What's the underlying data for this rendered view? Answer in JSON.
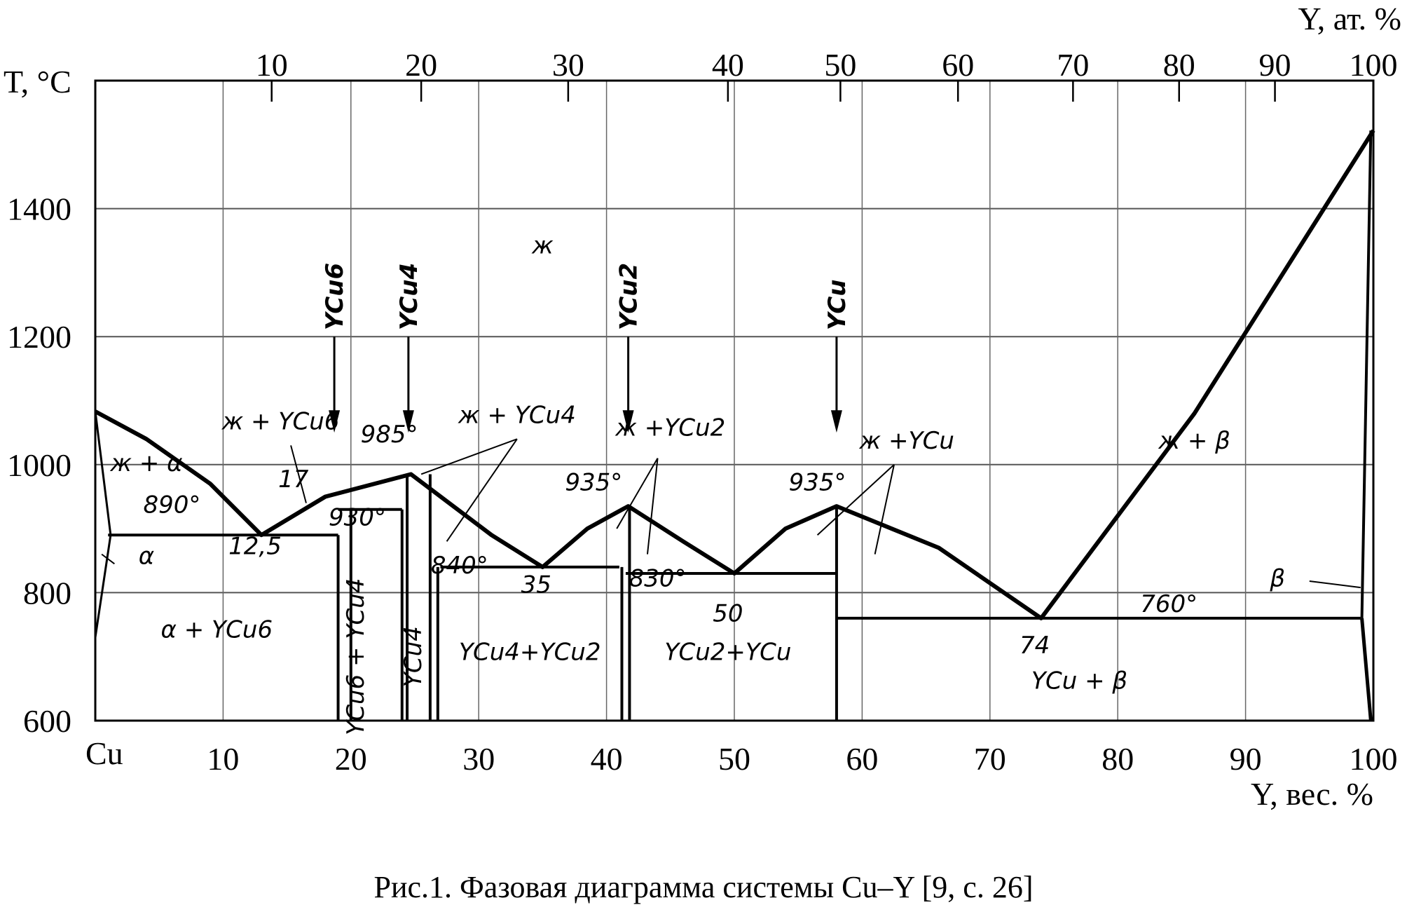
{
  "caption": "Рис.1. Фазовая диаграмма системы Cu–Y [9, с. 26]",
  "chart_data": {
    "type": "line",
    "ylabel": "T, °C",
    "xlabel_bottom": "Y, вес. %",
    "xlabel_top": "Y, ат. %",
    "ylim": [
      600,
      1600
    ],
    "xlim": [
      0,
      100
    ],
    "grid": true,
    "y_ticks": [
      "600",
      "800",
      "1000",
      "1200",
      "1400"
    ],
    "y_tick_values": [
      600,
      800,
      1000,
      1200,
      1400
    ],
    "bottom_origin_label": "Cu",
    "bottom_ticks": [
      "10",
      "20",
      "30",
      "40",
      "50",
      "60",
      "70",
      "80",
      "90",
      "100"
    ],
    "bottom_tick_values": [
      10,
      20,
      30,
      40,
      50,
      60,
      70,
      80,
      90,
      100
    ],
    "top_ticks": [
      "10",
      "20",
      "30",
      "40",
      "50",
      "60",
      "70",
      "80",
      "90",
      "100"
    ],
    "top_tick_values_wt": [
      13.8,
      25.5,
      37.0,
      49.5,
      58.3,
      67.5,
      76.5,
      84.8,
      92.3,
      100
    ],
    "liquidus": [
      [
        0,
        1083
      ],
      [
        4,
        1040
      ],
      [
        9,
        970
      ],
      [
        13,
        890
      ],
      [
        18,
        950
      ],
      [
        24.7,
        985
      ],
      [
        31,
        890
      ],
      [
        35,
        840
      ],
      [
        38.5,
        900
      ],
      [
        41.7,
        935
      ],
      [
        46,
        880
      ],
      [
        50,
        830
      ],
      [
        54,
        900
      ],
      [
        58,
        935
      ],
      [
        66,
        870
      ],
      [
        74,
        760
      ],
      [
        86,
        1080
      ],
      [
        100,
        1522
      ]
    ],
    "solidus_lines": [
      {
        "from": [
          1,
          890
        ],
        "to": [
          19,
          890
        ]
      },
      {
        "from": [
          19,
          930
        ],
        "to": [
          24,
          930
        ]
      },
      {
        "from": [
          27,
          840
        ],
        "to": [
          41,
          840
        ]
      },
      {
        "from": [
          41.5,
          830
        ],
        "to": [
          58,
          830
        ]
      },
      {
        "from": [
          58,
          760
        ],
        "to": [
          99,
          760
        ]
      }
    ],
    "compounds": [
      {
        "name": "YCu6",
        "x": 19.5,
        "t_top": 930
      },
      {
        "name": "YCu4",
        "x": 24.5,
        "t_top": 985
      },
      {
        "name": "YCu2",
        "x": 41.7,
        "t_top": 935
      },
      {
        "name": "YCu",
        "x": 58,
        "t_top": 935
      }
    ],
    "annotations": [
      {
        "text": "ж",
        "x": 35,
        "t": 1330
      },
      {
        "text": "ж + α",
        "x": 4,
        "t": 990
      },
      {
        "text": "890°",
        "x": 6,
        "t": 925
      },
      {
        "text": "α",
        "x": 4,
        "t": 845
      },
      {
        "text": "12,5",
        "x": 12.5,
        "t": 860
      },
      {
        "text": "17",
        "x": 15.5,
        "t": 965
      },
      {
        "text": "ж + YCu6",
        "x": 14.5,
        "t": 1055
      },
      {
        "text": "985°",
        "x": 23,
        "t": 1035
      },
      {
        "text": "930°",
        "x": 20.5,
        "t": 905
      },
      {
        "text": "ж + YCu4",
        "x": 33,
        "t": 1065
      },
      {
        "text": "840°",
        "x": 28.5,
        "t": 830
      },
      {
        "text": "35",
        "x": 34.5,
        "t": 800
      },
      {
        "text": "ж +YCu2",
        "x": 45,
        "t": 1045
      },
      {
        "text": "935°",
        "x": 39,
        "t": 960
      },
      {
        "text": "830°",
        "x": 44,
        "t": 810
      },
      {
        "text": "50",
        "x": 49.5,
        "t": 755
      },
      {
        "text": "ж +YCu",
        "x": 63.5,
        "t": 1025
      },
      {
        "text": "935°",
        "x": 56.5,
        "t": 960
      },
      {
        "text": "74",
        "x": 73.5,
        "t": 705
      },
      {
        "text": "760°",
        "x": 84,
        "t": 770
      },
      {
        "text": "ж + β",
        "x": 86,
        "t": 1025
      },
      {
        "text": "β",
        "x": 92.5,
        "t": 810
      },
      {
        "text": "α + YCu6",
        "x": 9.5,
        "t": 730
      },
      {
        "text": "YCu6 + YCu4",
        "x": 21,
        "t": 700
      },
      {
        "text": "YCu4",
        "x": 25.5,
        "t": 700
      },
      {
        "text": "YCu4+YCu2",
        "x": 34,
        "t": 695
      },
      {
        "text": "YCu2+YCu",
        "x": 49.5,
        "t": 695
      },
      {
        "text": "YCu + β",
        "x": 77,
        "t": 650
      }
    ]
  }
}
